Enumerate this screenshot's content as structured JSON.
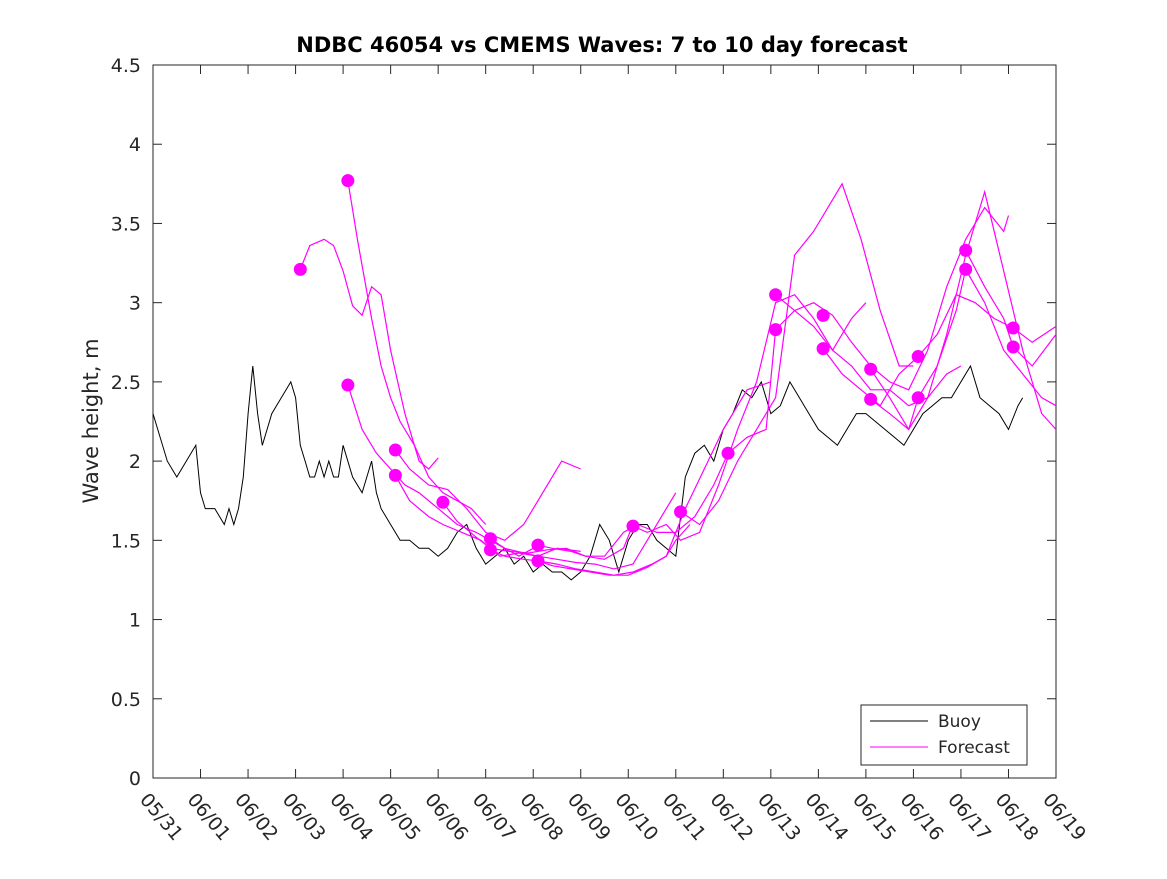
{
  "chart_data": {
    "type": "line",
    "title": "NDBC 46054 vs CMEMS Waves: 7 to 10 day forecast",
    "xlabel": "",
    "ylabel": "Wave height, m",
    "x_tick_labels": [
      "05/31",
      "06/01",
      "06/02",
      "06/03",
      "06/04",
      "06/05",
      "06/06",
      "06/07",
      "06/08",
      "06/09",
      "06/10",
      "06/11",
      "06/12",
      "06/13",
      "06/14",
      "06/15",
      "06/16",
      "06/17",
      "06/18",
      "06/19"
    ],
    "xlim_days": [
      0,
      19
    ],
    "ylim": [
      0,
      4.5
    ],
    "y_ticks": [
      "0",
      "0.5",
      "1",
      "1.5",
      "2",
      "2.5",
      "3",
      "3.5",
      "4",
      "4.5"
    ],
    "grid": false,
    "legend": {
      "placement": "bottom-right",
      "entries": [
        "Buoy",
        "Forecast"
      ]
    },
    "colors": {
      "buoy": "#000000",
      "forecast": "#ff00ff"
    },
    "series": [
      {
        "name": "Buoy",
        "x": [
          0.0,
          0.3,
          0.5,
          0.7,
          0.9,
          1.0,
          1.1,
          1.3,
          1.5,
          1.6,
          1.7,
          1.8,
          1.9,
          2.0,
          2.1,
          2.2,
          2.3,
          2.4,
          2.5,
          2.7,
          2.9,
          3.0,
          3.1,
          3.2,
          3.3,
          3.4,
          3.5,
          3.6,
          3.7,
          3.8,
          3.9,
          4.0,
          4.2,
          4.4,
          4.6,
          4.7,
          4.8,
          5.0,
          5.2,
          5.4,
          5.6,
          5.8,
          6.0,
          6.2,
          6.4,
          6.6,
          6.8,
          7.0,
          7.2,
          7.4,
          7.6,
          7.8,
          8.0,
          8.2,
          8.4,
          8.6,
          8.8,
          9.0,
          9.2,
          9.4,
          9.6,
          9.8,
          10.0,
          10.2,
          10.4,
          10.6,
          10.8,
          11.0,
          11.2,
          11.4,
          11.6,
          11.8,
          12.0,
          12.2,
          12.4,
          12.6,
          12.8,
          13.0,
          13.2,
          13.4,
          13.6,
          13.8,
          14.0,
          14.2,
          14.4,
          14.6,
          14.8,
          15.0,
          15.2,
          15.4,
          15.6,
          15.8,
          16.0,
          16.2,
          16.4,
          16.6,
          16.8,
          17.0,
          17.2,
          17.4,
          17.6,
          17.8,
          18.0,
          18.2,
          18.3
        ],
        "values": [
          2.3,
          2.0,
          1.9,
          2.0,
          2.1,
          1.8,
          1.7,
          1.7,
          1.6,
          1.7,
          1.6,
          1.7,
          1.9,
          2.3,
          2.6,
          2.3,
          2.1,
          2.2,
          2.3,
          2.4,
          2.5,
          2.4,
          2.1,
          2.0,
          1.9,
          1.9,
          2.0,
          1.9,
          2.0,
          1.9,
          1.9,
          2.1,
          1.9,
          1.8,
          2.0,
          1.8,
          1.7,
          1.6,
          1.5,
          1.5,
          1.45,
          1.45,
          1.4,
          1.45,
          1.55,
          1.6,
          1.45,
          1.35,
          1.4,
          1.45,
          1.35,
          1.4,
          1.3,
          1.35,
          1.3,
          1.3,
          1.25,
          1.3,
          1.4,
          1.6,
          1.5,
          1.3,
          1.5,
          1.6,
          1.6,
          1.5,
          1.45,
          1.4,
          1.9,
          2.05,
          2.1,
          2.0,
          2.2,
          2.3,
          2.45,
          2.4,
          2.5,
          2.3,
          2.35,
          2.5,
          2.4,
          2.3,
          2.2,
          2.15,
          2.1,
          2.2,
          2.3,
          2.3,
          2.25,
          2.2,
          2.15,
          2.1,
          2.2,
          2.3,
          2.35,
          2.4,
          2.4,
          2.5,
          2.6,
          2.4,
          2.35,
          2.3,
          2.2,
          2.35,
          2.4
        ]
      },
      {
        "name": "Forecast",
        "runs": [
          {
            "x": [
              3.1,
              3.3,
              3.6,
              3.8,
              4.0,
              4.2,
              4.4,
              4.6,
              4.8,
              5.0,
              5.3,
              5.6,
              5.8,
              6.0
            ],
            "values": [
              3.21,
              3.36,
              3.4,
              3.36,
              3.2,
              2.98,
              2.92,
              3.1,
              3.05,
              2.7,
              2.3,
              2.0,
              1.95,
              2.02
            ]
          },
          {
            "x": [
              4.1,
              4.3,
              4.6,
              4.8,
              5.0,
              5.2,
              5.5,
              5.8,
              6.1,
              6.4,
              6.7,
              7.0
            ],
            "values": [
              3.77,
              3.4,
              2.9,
              2.6,
              2.4,
              2.25,
              2.1,
              1.9,
              1.8,
              1.75,
              1.7,
              1.6
            ]
          },
          {
            "x": [
              4.1,
              4.4,
              4.7,
              5.0,
              5.3,
              5.6,
              6.0,
              6.4,
              6.8,
              7.1,
              7.4,
              7.7,
              8.0
            ],
            "values": [
              2.48,
              2.2,
              2.05,
              1.95,
              1.85,
              1.8,
              1.7,
              1.6,
              1.55,
              1.5,
              1.45,
              1.4,
              1.45
            ]
          },
          {
            "x": [
              5.1,
              5.4,
              5.8,
              6.2,
              6.6,
              7.0,
              7.4,
              7.8,
              8.2,
              8.6,
              9.0
            ],
            "values": [
              2.07,
              1.95,
              1.85,
              1.82,
              1.7,
              1.55,
              1.5,
              1.6,
              1.8,
              2.0,
              1.95
            ]
          },
          {
            "x": [
              5.1,
              5.4,
              5.8,
              6.1,
              6.5,
              6.9,
              7.3,
              7.7,
              8.1,
              8.5,
              9.0
            ],
            "values": [
              1.91,
              1.75,
              1.65,
              1.6,
              1.55,
              1.5,
              1.4,
              1.42,
              1.4,
              1.45,
              1.43
            ]
          },
          {
            "x": [
              6.1,
              6.4,
              6.8,
              7.1,
              7.5,
              7.9,
              8.3,
              8.7,
              9.1,
              9.5,
              9.9,
              10.1
            ],
            "values": [
              1.74,
              1.62,
              1.52,
              1.45,
              1.43,
              1.42,
              1.44,
              1.45,
              1.4,
              1.38,
              1.45,
              1.6
            ]
          },
          {
            "x": [
              7.1,
              7.4,
              7.8,
              8.1,
              8.5,
              8.9,
              9.3,
              9.7,
              10.1,
              10.5,
              10.8,
              11.0
            ],
            "values": [
              1.51,
              1.45,
              1.42,
              1.4,
              1.38,
              1.36,
              1.35,
              1.32,
              1.35,
              1.55,
              1.7,
              1.8
            ]
          },
          {
            "x": [
              7.1,
              7.4,
              7.8,
              8.1,
              8.5,
              8.9,
              9.3,
              9.7,
              10.1,
              10.5,
              10.8,
              11.0,
              11.3
            ],
            "values": [
              1.44,
              1.4,
              1.38,
              1.37,
              1.35,
              1.32,
              1.3,
              1.28,
              1.3,
              1.35,
              1.4,
              1.5,
              1.6
            ]
          },
          {
            "x": [
              8.1,
              8.4,
              8.8,
              9.1,
              9.5,
              9.9,
              10.2,
              10.6,
              11.0,
              11.4,
              11.8,
              12.1
            ],
            "values": [
              1.47,
              1.45,
              1.43,
              1.4,
              1.4,
              1.55,
              1.6,
              1.55,
              1.55,
              1.65,
              1.85,
              2.05
            ]
          },
          {
            "x": [
              8.1,
              8.4,
              8.8,
              9.2,
              9.6,
              10.0,
              10.4,
              10.8,
              11.2,
              11.6,
              12.0,
              12.5,
              13.0
            ],
            "values": [
              1.37,
              1.34,
              1.32,
              1.3,
              1.28,
              1.28,
              1.33,
              1.4,
              1.7,
              1.95,
              2.2,
              2.45,
              2.5
            ]
          },
          {
            "x": [
              10.1,
              10.4,
              10.8,
              11.1,
              11.5,
              11.9,
              12.3,
              12.7,
              13.1,
              13.5,
              13.9,
              14.3,
              14.7,
              15.0
            ],
            "values": [
              1.59,
              1.55,
              1.6,
              1.5,
              1.55,
              1.85,
              2.2,
              2.5,
              3.0,
              3.05,
              2.9,
              2.7,
              2.9,
              3.0
            ]
          },
          {
            "x": [
              11.1,
              11.5,
              11.9,
              12.3,
              12.7,
              13.1,
              13.5,
              13.9,
              14.2,
              14.5,
              14.9,
              15.3,
              15.7,
              16.0
            ],
            "values": [
              1.68,
              1.6,
              1.75,
              2.0,
              2.2,
              2.4,
              3.3,
              3.45,
              3.6,
              3.75,
              3.4,
              2.95,
              2.6,
              2.6
            ]
          },
          {
            "x": [
              12.1,
              12.5,
              12.9,
              13.1,
              13.5,
              13.9,
              14.3,
              14.7,
              15.1,
              15.5,
              15.9,
              16.3,
              16.7,
              17.0
            ],
            "values": [
              2.05,
              2.15,
              2.2,
              2.83,
              2.95,
              2.85,
              2.7,
              2.6,
              2.45,
              2.45,
              2.35,
              2.4,
              2.55,
              2.6
            ]
          },
          {
            "x": [
              13.1,
              13.5,
              13.9,
              14.3,
              14.7,
              15.1,
              15.5,
              15.9,
              16.3,
              16.7,
              17.1,
              17.5,
              17.9,
              18.0
            ],
            "values": [
              3.05,
              2.95,
              3.0,
              2.92,
              2.75,
              2.6,
              2.5,
              2.45,
              2.7,
              3.1,
              3.4,
              3.6,
              3.45,
              3.55
            ]
          },
          {
            "x": [
              14.1,
              14.5,
              14.9,
              15.3,
              15.7,
              16.1,
              16.5,
              16.9,
              17.3,
              17.7,
              18.1,
              18.5,
              19.0
            ],
            "values": [
              2.71,
              2.55,
              2.45,
              2.35,
              2.55,
              2.66,
              2.8,
              3.05,
              3.0,
              2.9,
              2.84,
              2.75,
              2.85
            ]
          },
          {
            "x": [
              15.1,
              15.5,
              15.9,
              16.3,
              16.7,
              17.1,
              17.5,
              17.9,
              18.3,
              18.7,
              19.0
            ],
            "values": [
              2.58,
              2.4,
              2.2,
              2.4,
              2.8,
              3.3,
              3.7,
              3.2,
              2.7,
              2.3,
              2.2
            ]
          },
          {
            "x": [
              15.1,
              15.5,
              15.9,
              16.1,
              16.5,
              16.9,
              17.1,
              17.5,
              17.9,
              18.3,
              18.7,
              19.0
            ],
            "values": [
              2.39,
              2.3,
              2.2,
              2.4,
              2.6,
              2.95,
              3.21,
              3.0,
              2.7,
              2.55,
              2.4,
              2.35
            ]
          },
          {
            "x": [
              17.1,
              17.5,
              17.9,
              18.1,
              18.5,
              19.0
            ],
            "values": [
              3.33,
              3.1,
              2.9,
              2.72,
              2.6,
              2.8
            ]
          }
        ],
        "markers": [
          {
            "x": 3.1,
            "value": 3.21
          },
          {
            "x": 4.1,
            "value": 3.77
          },
          {
            "x": 4.1,
            "value": 2.48
          },
          {
            "x": 5.1,
            "value": 2.07
          },
          {
            "x": 5.1,
            "value": 1.91
          },
          {
            "x": 6.1,
            "value": 1.74
          },
          {
            "x": 7.1,
            "value": 1.51
          },
          {
            "x": 7.1,
            "value": 1.44
          },
          {
            "x": 8.1,
            "value": 1.47
          },
          {
            "x": 8.1,
            "value": 1.37
          },
          {
            "x": 10.1,
            "value": 1.59
          },
          {
            "x": 11.1,
            "value": 1.68
          },
          {
            "x": 12.1,
            "value": 2.05
          },
          {
            "x": 13.1,
            "value": 3.05
          },
          {
            "x": 13.1,
            "value": 2.83
          },
          {
            "x": 14.1,
            "value": 2.92
          },
          {
            "x": 14.1,
            "value": 2.71
          },
          {
            "x": 15.1,
            "value": 2.58
          },
          {
            "x": 15.1,
            "value": 2.39
          },
          {
            "x": 16.1,
            "value": 2.66
          },
          {
            "x": 16.1,
            "value": 2.4
          },
          {
            "x": 17.1,
            "value": 3.33
          },
          {
            "x": 17.1,
            "value": 3.21
          },
          {
            "x": 18.1,
            "value": 2.84
          },
          {
            "x": 18.1,
            "value": 2.72
          }
        ]
      }
    ]
  }
}
